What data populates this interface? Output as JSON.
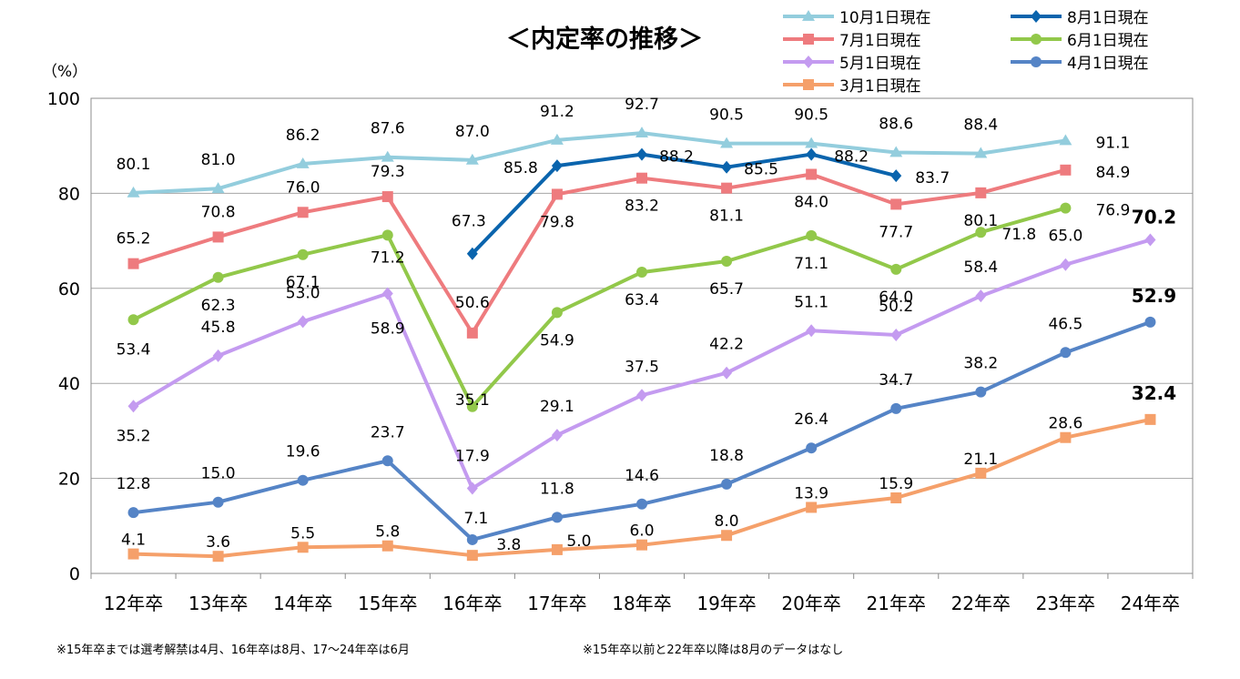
{
  "chart_data": {
    "type": "line",
    "title": "＜内定率の推移＞",
    "ylabel": "（%）",
    "ylim": [
      0,
      100
    ],
    "yticks": [
      "0",
      "20",
      "40",
      "60",
      "80",
      "100"
    ],
    "categories": [
      "12年卒",
      "13年卒",
      "14年卒",
      "15年卒",
      "16年卒",
      "17年卒",
      "18年卒",
      "19年卒",
      "20年卒",
      "21年卒",
      "22年卒",
      "23年卒",
      "24年卒"
    ],
    "series": [
      {
        "name": "10月1日現在",
        "color": "#93CDDD",
        "marker": "triangle",
        "values": [
          80.1,
          81.0,
          86.2,
          87.6,
          87.0,
          91.2,
          92.7,
          90.5,
          90.5,
          88.6,
          88.4,
          91.1,
          null
        ],
        "labels": [
          "80.1",
          "81.0",
          "86.2",
          "87.6",
          "87.0",
          "91.2",
          "92.7",
          "90.5",
          "90.5",
          "88.6",
          "88.4",
          "91.1",
          ""
        ]
      },
      {
        "name": "8月1日現在",
        "color": "#0A64AD",
        "marker": "diamond",
        "values": [
          null,
          null,
          null,
          null,
          67.3,
          85.8,
          88.2,
          85.5,
          88.2,
          83.7,
          null,
          null,
          null
        ],
        "labels": [
          "",
          "",
          "",
          "",
          "67.3",
          "85.8",
          "88.2",
          "85.5",
          "88.2",
          "83.7",
          "",
          "",
          ""
        ]
      },
      {
        "name": "7月1日現在",
        "color": "#EE7B7E",
        "marker": "square",
        "values": [
          65.2,
          70.8,
          76.0,
          79.3,
          50.6,
          79.8,
          83.2,
          81.1,
          84.0,
          77.7,
          80.1,
          84.9,
          null
        ],
        "labels": [
          "65.2",
          "70.8",
          "76.0",
          "79.3",
          "50.6",
          "79.8",
          "83.2",
          "81.1",
          "84.0",
          "77.7",
          "80.1",
          "84.9",
          ""
        ]
      },
      {
        "name": "6月1日現在",
        "color": "#92C84A",
        "marker": "circle",
        "values": [
          53.4,
          62.3,
          67.1,
          71.2,
          35.1,
          54.9,
          63.4,
          65.7,
          71.1,
          64.0,
          71.8,
          76.9,
          null
        ],
        "labels": [
          "53.4",
          "62.3",
          "67.1",
          "71.2",
          "35.1",
          "54.9",
          "63.4",
          "65.7",
          "71.1",
          "64.0",
          "71.8",
          "76.9",
          ""
        ]
      },
      {
        "name": "5月1日現在",
        "color": "#C49BF0",
        "marker": "diamond",
        "values": [
          35.2,
          45.8,
          53.0,
          58.9,
          17.9,
          29.1,
          37.5,
          42.2,
          51.1,
          50.2,
          58.4,
          65.0,
          70.2
        ],
        "labels": [
          "35.2",
          "45.8",
          "53.0",
          "58.9",
          "17.9",
          "29.1",
          "37.5",
          "42.2",
          "51.1",
          "50.2",
          "58.4",
          "65.0",
          "70.2"
        ]
      },
      {
        "name": "4月1日現在",
        "color": "#5584C6",
        "marker": "circle",
        "values": [
          12.8,
          15.0,
          19.6,
          23.7,
          7.1,
          11.8,
          14.6,
          18.8,
          26.4,
          34.7,
          38.2,
          46.5,
          52.9
        ],
        "labels": [
          "12.8",
          "15.0",
          "19.6",
          "23.7",
          "7.1",
          "11.8",
          "14.6",
          "18.8",
          "26.4",
          "34.7",
          "38.2",
          "46.5",
          "52.9"
        ]
      },
      {
        "name": "3月1日現在",
        "color": "#F5A06A",
        "marker": "square",
        "values": [
          4.1,
          3.6,
          5.5,
          5.8,
          3.8,
          5.0,
          6.0,
          8.0,
          13.9,
          15.9,
          21.1,
          28.6,
          32.4
        ],
        "labels": [
          "4.1",
          "3.6",
          "5.5",
          "5.8",
          "3.8",
          "5.0",
          "6.0",
          "8.0",
          "13.9",
          "15.9",
          "21.1",
          "28.6",
          "32.4"
        ]
      }
    ],
    "notes": [
      "※15年卒までは選考解禁は4月、16年卒は8月、17～24年卒は6月",
      "※15年卒以前と22年卒以降は8月のデータはなし"
    ]
  }
}
